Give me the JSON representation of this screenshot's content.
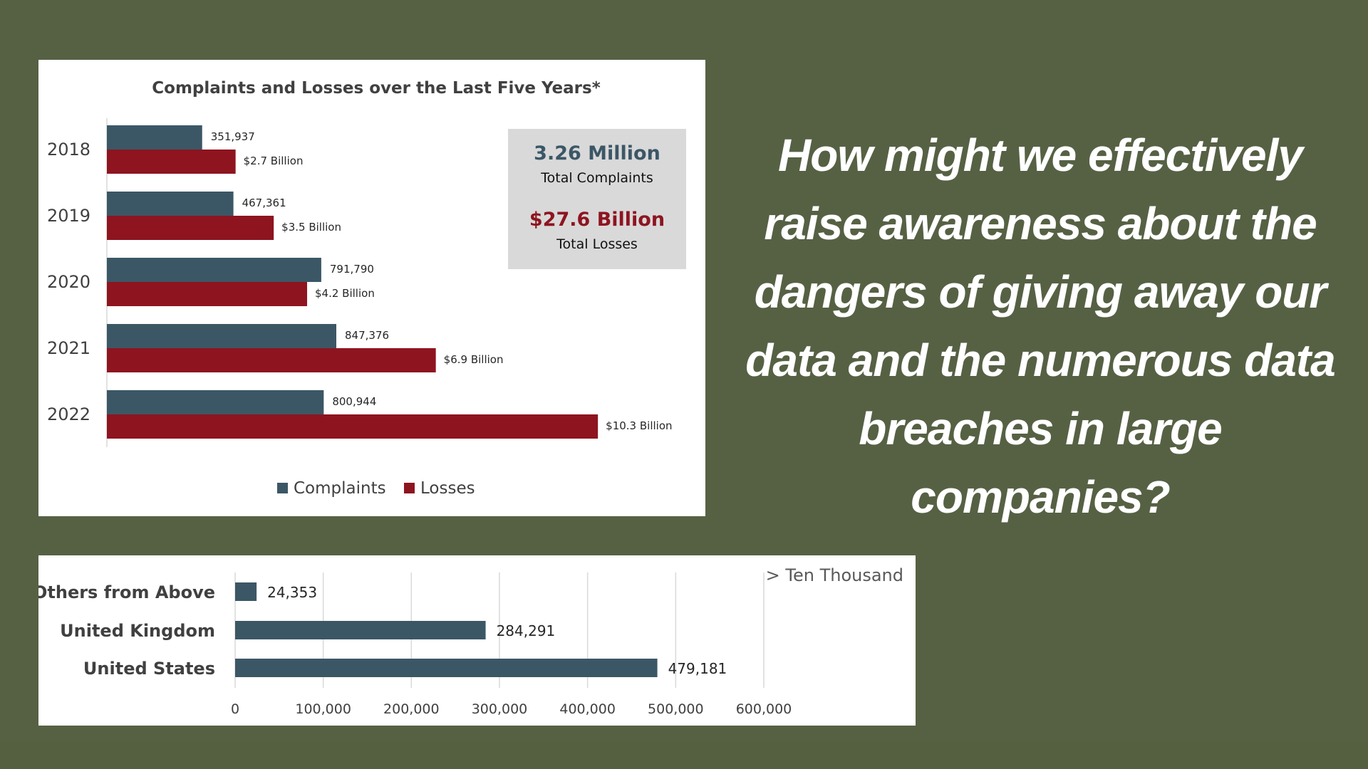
{
  "colors": {
    "background": "#566144",
    "complaints": "#3b5766",
    "losses": "#8e1420",
    "summary_box": "#d9d9d9",
    "text": "#404040",
    "grid": "#d9d9d9"
  },
  "question": "How might we effectively raise awareness about the dangers of giving away our data and the numerous data breaches in large companies?",
  "chart_data": [
    {
      "type": "bar",
      "orientation": "horizontal",
      "title": "Complaints and Losses over the Last Five Years*",
      "categories": [
        "2018",
        "2019",
        "2020",
        "2021",
        "2022"
      ],
      "series": [
        {
          "name": "Complaints",
          "values": [
            351937,
            467361,
            791790,
            847376,
            800944
          ],
          "labels": [
            "351,937",
            "467,361",
            "791,790",
            "847,376",
            "800,944"
          ]
        },
        {
          "name": "Losses",
          "values": [
            2.7,
            3.5,
            4.2,
            6.9,
            10.3
          ],
          "labels": [
            "$2.7 Billion",
            "$3.5 Billion",
            "$4.2 Billion",
            "$6.9 Billion",
            "$10.3 Billion"
          ]
        }
      ],
      "summary": {
        "complaints_value": "3.26 Million",
        "complaints_label": "Total Complaints",
        "losses_value": "$27.6 Billion",
        "losses_label": "Total Losses"
      },
      "legend": "bottom",
      "grid": false
    },
    {
      "type": "bar",
      "orientation": "horizontal",
      "annotation": "> Ten Thousand",
      "categories": [
        "Others from Above",
        "United Kingdom",
        "United States"
      ],
      "values": [
        24353,
        284291,
        479181
      ],
      "labels": [
        "24,353",
        "284,291",
        "479,181"
      ],
      "xlim": [
        0,
        600000
      ],
      "xticks": [
        "0",
        "100,000",
        "200,000",
        "300,000",
        "400,000",
        "500,000",
        "600,000"
      ],
      "grid": true
    }
  ]
}
